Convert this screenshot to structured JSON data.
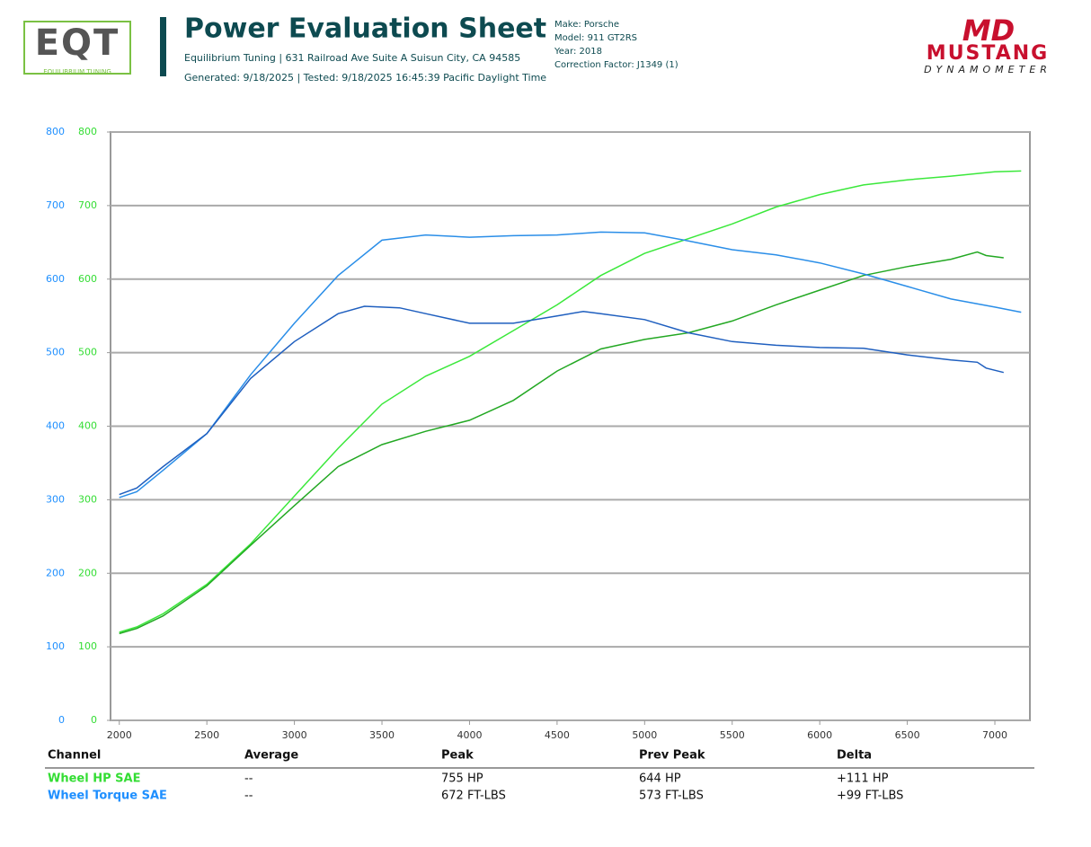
{
  "header": {
    "logo_text": "EQT",
    "logo_sub": "EQUILIBRIUM TUNING",
    "title": "Power Evaluation Sheet",
    "address": "Equilibrium Tuning | 631 Railroad Ave Suite A Suisun City, CA 94585",
    "generated": "Generated: 9/18/2025 | Tested: 9/18/2025 16:45:39 Pacific Daylight Time",
    "vehicle": [
      "Make: Porsche",
      "Model: 911 GT2RS",
      "Year: 2018",
      "Correction Factor: J1349 (1)"
    ],
    "brand_mark": "MD",
    "brand_name": "MUSTANG",
    "brand_sub": "DYNAMOMETER"
  },
  "chart_data": {
    "type": "line",
    "xlim": [
      1950,
      7200
    ],
    "xticks": [
      2000,
      2500,
      3000,
      3500,
      4000,
      4500,
      5000,
      5500,
      6000,
      6500,
      7000
    ],
    "ylim": [
      0,
      800
    ],
    "yticks": [
      0,
      100,
      200,
      300,
      400,
      500,
      600,
      700,
      800
    ],
    "y2lim": [
      0,
      800
    ],
    "y2ticks": [
      0,
      100,
      200,
      300,
      400,
      500,
      600,
      700,
      800
    ],
    "y_color": "#1e8fff",
    "y2_color": "#33dd33",
    "grid": true,
    "series": [
      {
        "color": "#3be83b",
        "axis": "y2",
        "x": [
          2000,
          2100,
          2250,
          2500,
          2750,
          3000,
          3250,
          3500,
          3750,
          4000,
          4250,
          4500,
          4750,
          5000,
          5250,
          5500,
          5750,
          6000,
          6250,
          6500,
          6750,
          7000,
          7150
        ],
        "values": [
          120,
          127,
          145,
          185,
          240,
          305,
          370,
          430,
          468,
          495,
          530,
          565,
          605,
          635,
          655,
          675,
          698,
          715,
          728,
          735,
          740,
          746,
          747
        ]
      },
      {
        "color": "#23a823",
        "axis": "y2",
        "x": [
          2000,
          2100,
          2250,
          2500,
          2750,
          3000,
          3250,
          3500,
          3750,
          4000,
          4250,
          4500,
          4750,
          5000,
          5250,
          5500,
          5750,
          6000,
          6250,
          6500,
          6750,
          6900,
          6950,
          7050
        ],
        "values": [
          118,
          125,
          142,
          183,
          238,
          292,
          345,
          375,
          393,
          408,
          435,
          475,
          505,
          518,
          527,
          543,
          565,
          585,
          605,
          617,
          627,
          637,
          632,
          629
        ]
      },
      {
        "color": "#2a8ee8",
        "x": [
          2000,
          2100,
          2250,
          2500,
          2750,
          3000,
          3250,
          3500,
          3750,
          4000,
          4250,
          4500,
          4750,
          5000,
          5250,
          5500,
          5750,
          6000,
          6250,
          6500,
          6750,
          7000,
          7150
        ],
        "values": [
          303,
          311,
          340,
          390,
          470,
          540,
          605,
          653,
          660,
          657,
          659,
          660,
          664,
          663,
          652,
          640,
          633,
          622,
          607,
          590,
          573,
          562,
          555
        ]
      },
      {
        "color": "#1f5fbf",
        "x": [
          2000,
          2100,
          2250,
          2500,
          2750,
          3000,
          3250,
          3400,
          3600,
          3750,
          4000,
          4250,
          4500,
          4650,
          4750,
          5000,
          5250,
          5500,
          5750,
          6000,
          6250,
          6500,
          6750,
          6900,
          6950,
          7050
        ],
        "values": [
          307,
          316,
          345,
          390,
          465,
          515,
          553,
          563,
          561,
          553,
          540,
          540,
          550,
          556,
          553,
          545,
          527,
          515,
          510,
          507,
          506,
          497,
          490,
          487,
          479,
          473
        ]
      }
    ]
  },
  "table": {
    "columns": [
      "Channel",
      "Average",
      "Peak",
      "Prev Peak",
      "Delta"
    ],
    "row_colors": [
      "#33dd33",
      "#1e8fff"
    ],
    "rows": [
      [
        "Wheel HP SAE",
        "--",
        "755 HP",
        "644 HP",
        "+111 HP"
      ],
      [
        "Wheel Torque SAE",
        "--",
        "672 FT-LBS",
        "573 FT-LBS",
        "+99 FT-LBS"
      ]
    ]
  }
}
